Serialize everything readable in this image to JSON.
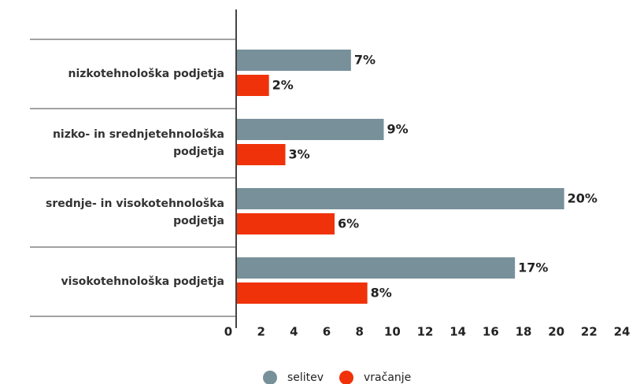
{
  "chart_data": {
    "type": "barh",
    "categories": [
      "nizkotehnološka podjetja",
      "nizko- in srednjetehnološka podjetja",
      "srednje- in visokotehnološka podjetja",
      "visokotehnološka podjetja"
    ],
    "series": [
      {
        "name": "selitev",
        "color": "#78909a",
        "values": [
          7,
          9,
          20,
          17
        ],
        "value_labels": [
          "7%",
          "9%",
          "20%",
          "17%"
        ]
      },
      {
        "name": "vračanje",
        "color": "#f0320a",
        "values": [
          2,
          3,
          6,
          8
        ],
        "value_labels": [
          "2%",
          "3%",
          "6%",
          "8%"
        ]
      }
    ],
    "xlim": [
      0,
      24
    ],
    "xticks": [
      0,
      2,
      4,
      6,
      8,
      10,
      12,
      14,
      16,
      18,
      20,
      22,
      24
    ]
  }
}
